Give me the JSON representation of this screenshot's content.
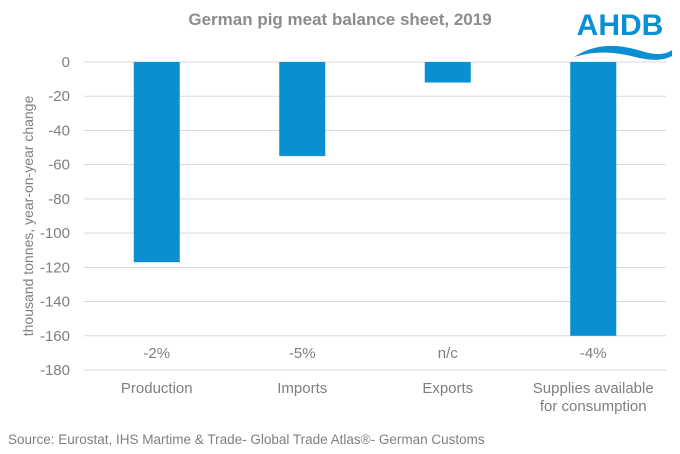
{
  "chart_data": {
    "type": "bar",
    "title": "German pig meat balance sheet, 2019",
    "xlabel": "",
    "ylabel": "thousand tonnes, year-on-year change",
    "ylim": [
      -180,
      0
    ],
    "yticks": [
      0,
      -20,
      -40,
      -60,
      -80,
      -100,
      -120,
      -140,
      -160,
      -180
    ],
    "grid": true,
    "categories": [
      "Production",
      "Imports",
      "Exports",
      "Supplies available for consumption"
    ],
    "category_lines": [
      [
        "Production"
      ],
      [
        "Imports"
      ],
      [
        "Exports"
      ],
      [
        "Supplies available",
        "for consumption"
      ]
    ],
    "values": [
      -117,
      -55,
      -12,
      -160
    ],
    "annotations": [
      "-2%",
      "-5%",
      "n/c",
      "-4%"
    ],
    "bar_color": "#0b8fd3",
    "source": "Source: Eurostat, IHS Martime & Trade- Global Trade Atlas®- German Customs"
  },
  "logo": {
    "text": "AHDB",
    "color": "#0b8fd3"
  }
}
